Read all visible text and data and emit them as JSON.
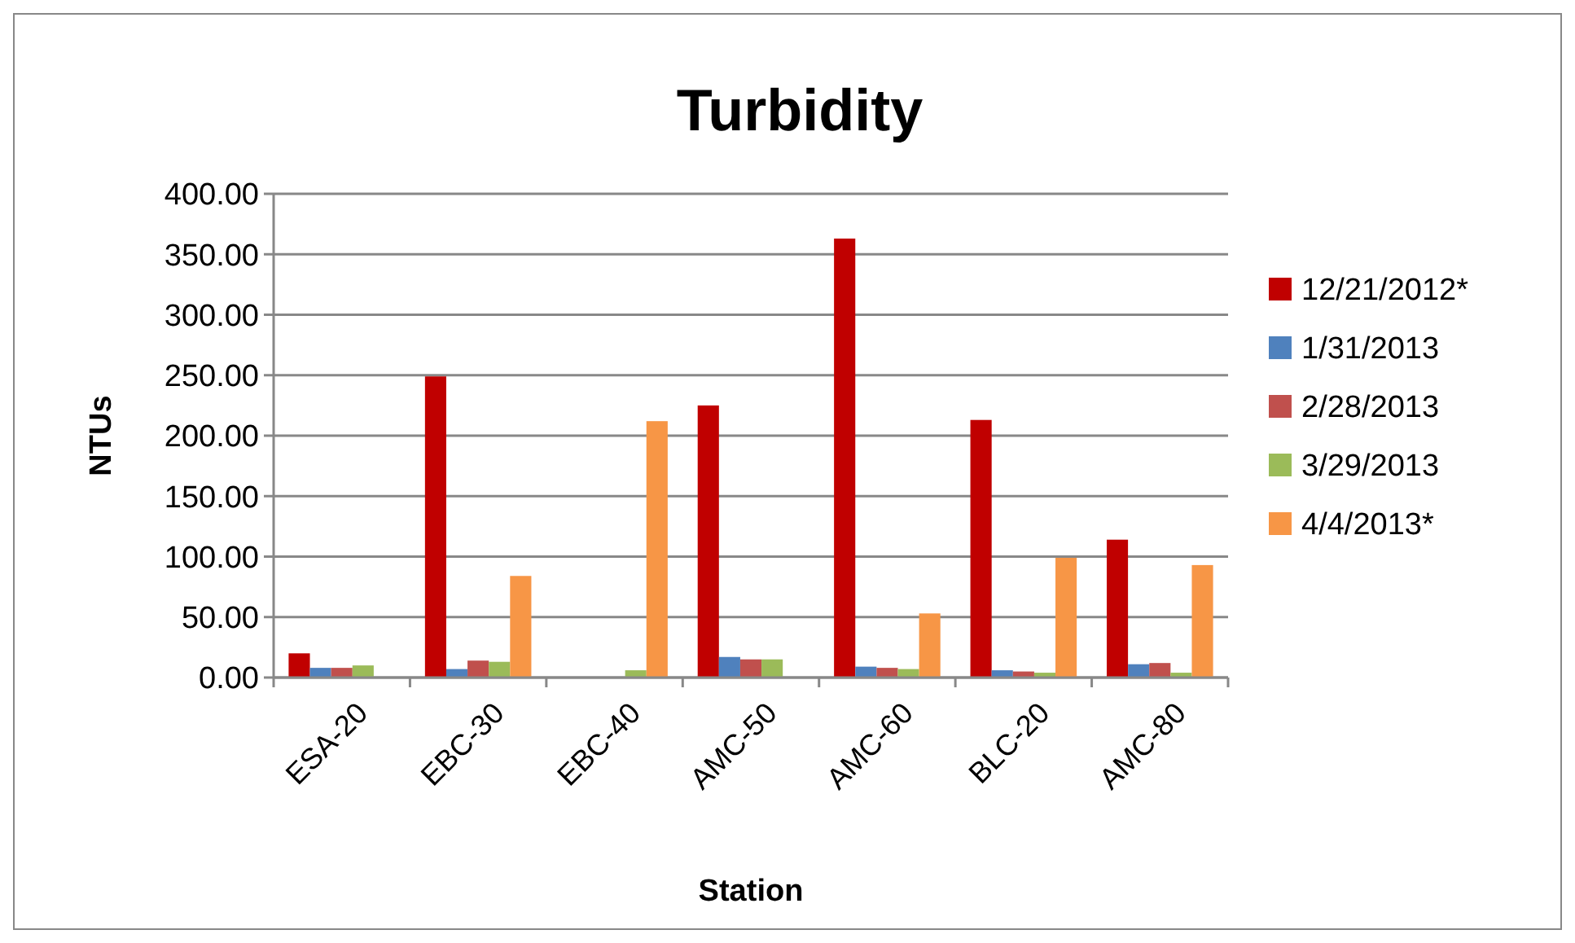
{
  "chart_data": {
    "type": "bar",
    "title": "Turbidity",
    "xlabel": "Station",
    "ylabel": "NTUs",
    "categories": [
      "ESA-20",
      "EBC-30",
      "EBC-40",
      "AMC-50",
      "AMC-60",
      "BLC-20",
      "AMC-80"
    ],
    "series": [
      {
        "name": "12/21/2012*",
        "color": "#c00000",
        "values": [
          20,
          249,
          null,
          225,
          363,
          213,
          114
        ]
      },
      {
        "name": "1/31/2013",
        "color": "#4f81bd",
        "values": [
          8,
          7,
          null,
          17,
          9,
          6,
          11
        ]
      },
      {
        "name": "2/28/2013",
        "color": "#c0504d",
        "values": [
          8,
          14,
          null,
          15,
          8,
          5,
          12
        ]
      },
      {
        "name": "3/29/2013",
        "color": "#9bbb59",
        "values": [
          10,
          13,
          6,
          15,
          7,
          4,
          4
        ]
      },
      {
        "name": "4/4/2013*",
        "color": "#f79646",
        "values": [
          null,
          84,
          212,
          null,
          53,
          99,
          93
        ]
      }
    ],
    "ylim": [
      0,
      400
    ],
    "yticks": [
      {
        "value": 0,
        "label": "0.00"
      },
      {
        "value": 50,
        "label": "50.00"
      },
      {
        "value": 100,
        "label": "100.00"
      },
      {
        "value": 150,
        "label": "150.00"
      },
      {
        "value": 200,
        "label": "200.00"
      },
      {
        "value": 250,
        "label": "250.00"
      },
      {
        "value": 300,
        "label": "300.00"
      },
      {
        "value": 350,
        "label": "350.00"
      },
      {
        "value": 400,
        "label": "400.00"
      }
    ],
    "grid": "y",
    "legend": "right"
  }
}
